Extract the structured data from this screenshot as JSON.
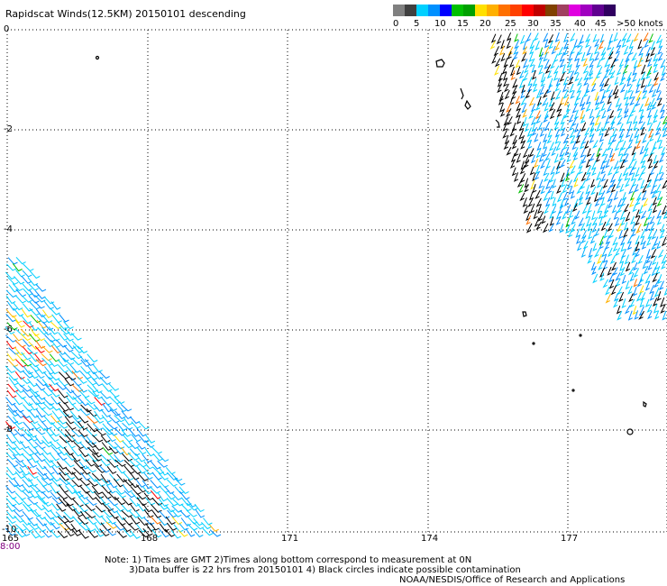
{
  "title": "Rapidscat Winds(12.5KM) 20150101 descending",
  "colorbar": {
    "labels": [
      "0",
      "5",
      "10",
      "15",
      "20",
      "25",
      "30",
      "35",
      "40",
      "45",
      ">50 knots"
    ],
    "colors": [
      "#808080",
      "#404040",
      "#00d0ff",
      "#0090ff",
      "#0000ff",
      "#00c000",
      "#00a000",
      "#ffe000",
      "#ffb000",
      "#ff7000",
      "#ff4000",
      "#ff0000",
      "#c00000",
      "#804000",
      "#a04060",
      "#e000e0",
      "#a000c0",
      "#600090",
      "#300060"
    ]
  },
  "y_axis_labels": [
    "0",
    "-2",
    "-4",
    "-6",
    "-8",
    "-10"
  ],
  "x_axis_labels": [
    "165",
    "168",
    "171",
    "174",
    "177"
  ],
  "time_label": "8:00",
  "notes": {
    "line1": "Note: 1) Times are GMT 2)Times along bottom correspond to measurement at 0N",
    "line2": "3)Data buffer is 22 hrs from 20150101 4) Black circles indicate possible contamination",
    "credit": "NOAA/NESDIS/Office of Research and Applications"
  }
}
